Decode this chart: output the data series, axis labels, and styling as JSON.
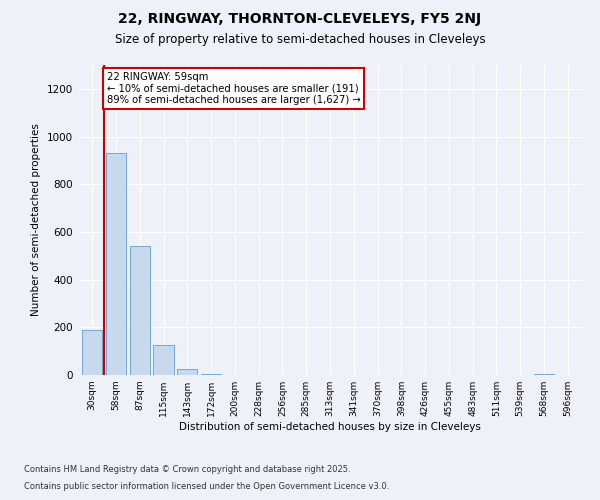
{
  "title1": "22, RINGWAY, THORNTON-CLEVELEYS, FY5 2NJ",
  "title2": "Size of property relative to semi-detached houses in Cleveleys",
  "xlabel": "Distribution of semi-detached houses by size in Cleveleys",
  "ylabel": "Number of semi-detached properties",
  "categories": [
    "30sqm",
    "58sqm",
    "87sqm",
    "115sqm",
    "143sqm",
    "172sqm",
    "200sqm",
    "228sqm",
    "256sqm",
    "285sqm",
    "313sqm",
    "341sqm",
    "370sqm",
    "398sqm",
    "426sqm",
    "455sqm",
    "483sqm",
    "511sqm",
    "539sqm",
    "568sqm",
    "596sqm"
  ],
  "values": [
    190,
    930,
    540,
    125,
    25,
    5,
    0,
    0,
    0,
    0,
    0,
    0,
    0,
    0,
    0,
    0,
    0,
    0,
    0,
    5,
    0
  ],
  "bar_color": "#c9d9ed",
  "bar_edge_color": "#6fa8d6",
  "property_line_x": 0.5,
  "annotation_text": "22 RINGWAY: 59sqm\n← 10% of semi-detached houses are smaller (191)\n89% of semi-detached houses are larger (1,627) →",
  "annotation_box_color": "#ffffff",
  "annotation_box_edge": "#cc0000",
  "marker_line_color": "#cc0000",
  "ylim": [
    0,
    1300
  ],
  "yticks": [
    0,
    200,
    400,
    600,
    800,
    1000,
    1200
  ],
  "footer1": "Contains HM Land Registry data © Crown copyright and database right 2025.",
  "footer2": "Contains public sector information licensed under the Open Government Licence v3.0.",
  "bg_color": "#eef2f8",
  "plot_bg_color": "#eef2f8"
}
